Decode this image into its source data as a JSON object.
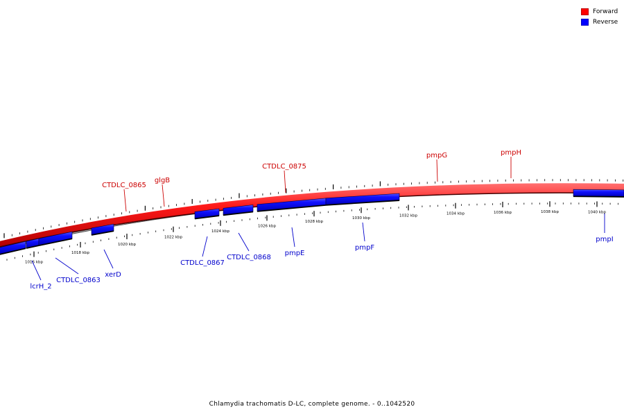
{
  "legend": {
    "forward_label": "Forward",
    "reverse_label": "Reverse",
    "forward_color": "#ff0000",
    "reverse_color": "#0000ff"
  },
  "caption": "Chlamydia trachomatis D-LC, complete genome. - 0..1042520",
  "tick_labels": [
    "1016 kbp",
    "1018 kbp",
    "1020 kbp",
    "1022 kbp",
    "1024 kbp",
    "1026 kbp",
    "1028 kbp",
    "1030 kbp",
    "1032 kbp",
    "1034 kbp",
    "1036 kbp",
    "1038 kbp",
    "1040 kbp"
  ],
  "forward_genes": [
    "CTDLC_0865",
    "glgB",
    "CTDLC_0875",
    "pmpG",
    "pmpH"
  ],
  "reverse_genes": [
    "lcrH_2",
    "CTDLC_0863",
    "xerD",
    "CTDLC_0867",
    "CTDLC_0868",
    "pmpE",
    "pmpF",
    "pmpI"
  ]
}
